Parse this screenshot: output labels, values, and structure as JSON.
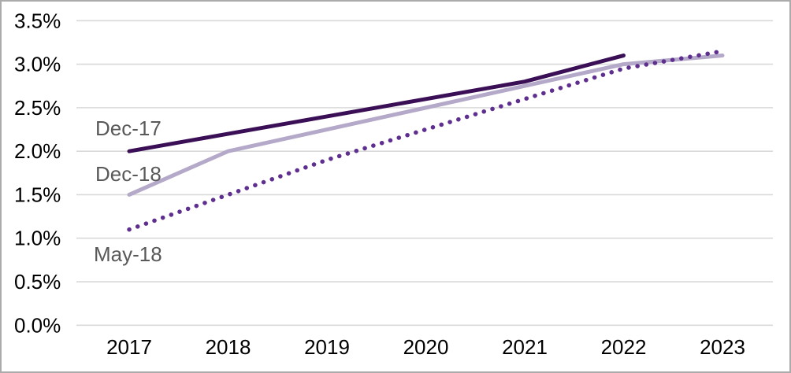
{
  "chart_data": {
    "type": "line",
    "title": "",
    "xlabel": "",
    "ylabel": "",
    "x_categories": [
      2017,
      2018,
      2019,
      2020,
      2021,
      2022,
      2023
    ],
    "y_axis": {
      "min": 0.0,
      "max": 3.5,
      "step": 0.5,
      "unit": "%"
    },
    "y_tick_labels": [
      "0.0%",
      "0.5%",
      "1.0%",
      "1.5%",
      "2.0%",
      "2.5%",
      "3.0%",
      "3.5%"
    ],
    "grid": "horizontal",
    "legend": "inline-series-labels",
    "series": [
      {
        "name": "Dec-17",
        "style": "solid",
        "color": "#3B0F56",
        "x": [
          2017,
          2018,
          2019,
          2020,
          2021,
          2022
        ],
        "values": [
          2.0,
          2.2,
          2.4,
          2.6,
          2.8,
          3.1
        ]
      },
      {
        "name": "Dec-18",
        "style": "solid",
        "color": "#B4A9C8",
        "x": [
          2017,
          2018,
          2019,
          2020,
          2021,
          2022,
          2023
        ],
        "values": [
          1.5,
          2.0,
          2.25,
          2.5,
          2.75,
          3.0,
          3.1
        ]
      },
      {
        "name": "May-18",
        "style": "dotted",
        "color": "#5F2F8F",
        "x": [
          2017,
          2018,
          2019,
          2020,
          2021,
          2022,
          2023
        ],
        "values": [
          1.1,
          1.5,
          1.9,
          2.25,
          2.6,
          2.95,
          3.15
        ]
      }
    ],
    "series_label_positions": [
      {
        "x": 119,
        "y": 161
      },
      {
        "x": 119,
        "y": 219
      },
      {
        "x": 117,
        "y": 321
      }
    ],
    "draw_order": [
      1,
      0,
      2
    ]
  },
  "colors": {
    "background": "#FFFFFF",
    "frame_border": "#ABABAB",
    "gridline": "#D9D9D9",
    "axis_text": "#000000",
    "series_label_text": "#595959"
  }
}
